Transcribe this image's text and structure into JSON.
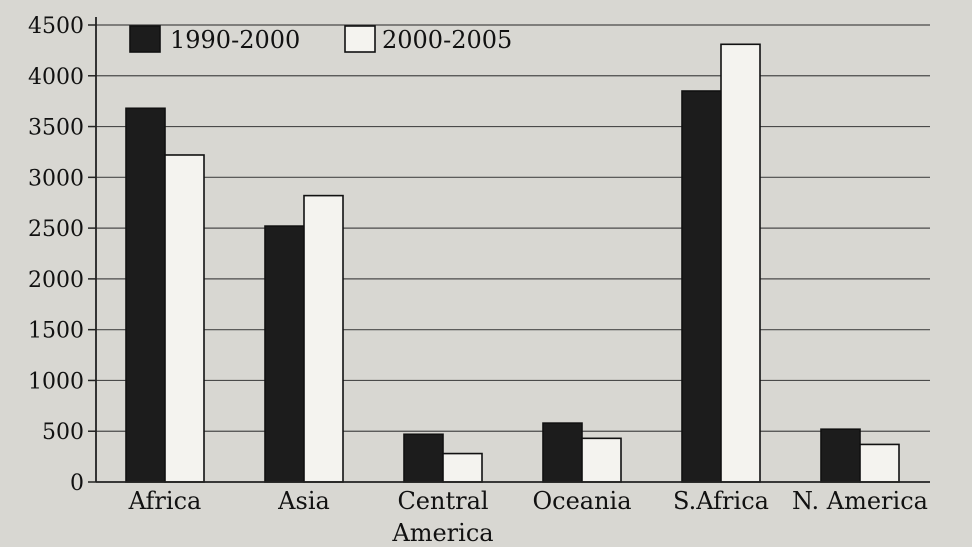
{
  "chart_data": {
    "type": "bar",
    "title": "",
    "xlabel": "",
    "ylabel": "",
    "categories": [
      "Africa",
      "Asia",
      "Central America",
      "Oceania",
      "S.Africa",
      "N. America"
    ],
    "series": [
      {
        "name": "1990-2000",
        "color": "#1c1c1c",
        "values": [
          3680,
          2520,
          470,
          580,
          3850,
          520
        ]
      },
      {
        "name": "2000-2005",
        "color": "#f4f3ef",
        "values": [
          3220,
          2820,
          280,
          430,
          4310,
          370
        ]
      }
    ],
    "ylim": [
      0,
      4500
    ],
    "yticks": [
      0,
      500,
      1000,
      1500,
      2000,
      2500,
      3000,
      3500,
      4000,
      4500
    ],
    "grid": true,
    "legend_position": "top-left"
  }
}
